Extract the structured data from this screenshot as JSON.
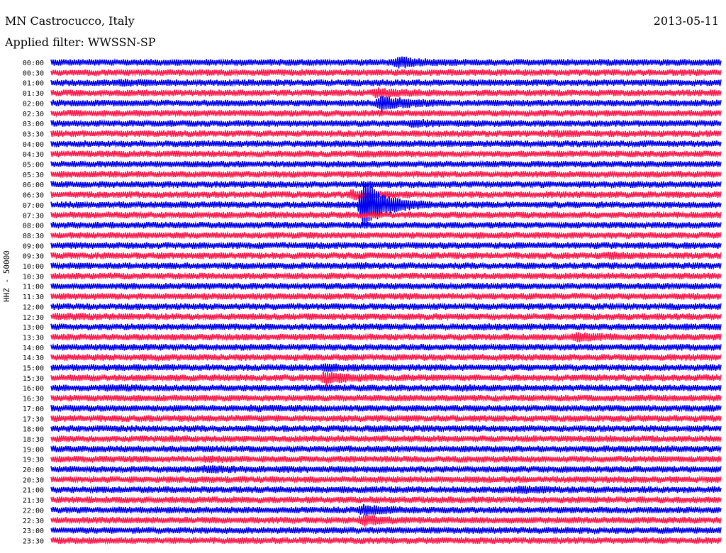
{
  "header": {
    "station": "MN Castrocucco, Italy",
    "date": "2013-05-11",
    "filter": "Applied filter: WWSSN-SP"
  },
  "chart_data": {
    "type": "line",
    "title": "MN Castrocucco, Italy",
    "ylabel": "HHZ - 50000",
    "rows": [
      "00:00",
      "00:30",
      "01:00",
      "01:30",
      "02:00",
      "02:30",
      "03:00",
      "03:30",
      "04:00",
      "04:30",
      "05:00",
      "05:30",
      "06:00",
      "06:30",
      "07:00",
      "07:30",
      "08:00",
      "08:30",
      "09:00",
      "09:30",
      "10:00",
      "10:30",
      "11:00",
      "11:30",
      "12:00",
      "12:30",
      "13:00",
      "13:30",
      "14:00",
      "14:30",
      "15:00",
      "15:30",
      "16:00",
      "16:30",
      "17:00",
      "17:30",
      "18:00",
      "18:30",
      "19:00",
      "19:30",
      "20:00",
      "20:30",
      "21:00",
      "21:30",
      "22:00",
      "22:30",
      "23:00",
      "23:30"
    ],
    "row_colors": [
      "#0000ee",
      "#ff1a4d"
    ],
    "x_span_minutes": 30,
    "events": [
      {
        "row": "00:00",
        "minute": 15.6,
        "amplitude": 2.2
      },
      {
        "row": "01:00",
        "minute": 3.2,
        "amplitude": 1.3
      },
      {
        "row": "01:30",
        "minute": 14.6,
        "amplitude": 1.8
      },
      {
        "row": "02:00",
        "minute": 14.8,
        "amplitude": 3.0
      },
      {
        "row": "03:00",
        "minute": 16.2,
        "amplitude": 1.5
      },
      {
        "row": "03:30",
        "minute": 22.5,
        "amplitude": 1.3
      },
      {
        "row": "04:30",
        "minute": 14.0,
        "amplitude": 1.2
      },
      {
        "row": "06:30",
        "minute": 13.5,
        "amplitude": 1.8
      },
      {
        "row": "07:00",
        "minute": 14.0,
        "amplitude": 8.0
      },
      {
        "row": "09:30",
        "minute": 25.0,
        "amplitude": 1.5
      },
      {
        "row": "10:00",
        "minute": 13.5,
        "amplitude": 1.2
      },
      {
        "row": "12:30",
        "minute": 0.3,
        "amplitude": 1.3
      },
      {
        "row": "13:00",
        "minute": 19.4,
        "amplitude": 1.2
      },
      {
        "row": "13:30",
        "minute": 23.5,
        "amplitude": 1.8
      },
      {
        "row": "15:00",
        "minute": 12.3,
        "amplitude": 1.5
      },
      {
        "row": "15:30",
        "minute": 12.3,
        "amplitude": 2.5
      },
      {
        "row": "16:00",
        "minute": 2.7,
        "amplitude": 1.3
      },
      {
        "row": "16:00",
        "minute": 12.2,
        "amplitude": 1.2
      },
      {
        "row": "16:00",
        "minute": 18.2,
        "amplitude": 1.2
      },
      {
        "row": "17:00",
        "minute": 9.1,
        "amplitude": 1.2
      },
      {
        "row": "19:30",
        "minute": 7.0,
        "amplitude": 1.3
      },
      {
        "row": "20:00",
        "minute": 7.0,
        "amplitude": 1.5
      },
      {
        "row": "20:00",
        "minute": 10.3,
        "amplitude": 1.2
      },
      {
        "row": "21:00",
        "minute": 21.0,
        "amplitude": 1.5
      },
      {
        "row": "22:00",
        "minute": 14.0,
        "amplitude": 2.0
      },
      {
        "row": "22:30",
        "minute": 14.0,
        "amplitude": 2.0
      }
    ]
  }
}
